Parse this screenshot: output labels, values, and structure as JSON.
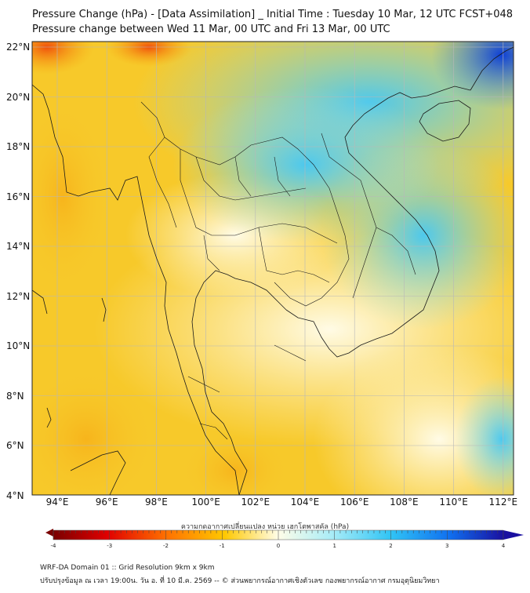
{
  "header": {
    "title_line1": "Pressure Change (hPa) - [Data Assimilation] _ Initial Time : Tuesday 10 Mar, 12 UTC FCST+048",
    "title_line2": "Pressure change between Wed 11 Mar, 00 UTC and Fri 13 Mar, 00 UTC"
  },
  "map": {
    "lat_labels": [
      "22°N",
      "20°N",
      "18°N",
      "16°N",
      "14°N",
      "12°N",
      "10°N",
      "8°N",
      "6°N",
      "4°N"
    ],
    "lon_labels": [
      "94°E",
      "96°E",
      "98°E",
      "100°E",
      "102°E",
      "104°E",
      "106°E",
      "108°E",
      "110°E",
      "112°E"
    ],
    "colors": {
      "land_outline": "#1a1a1a",
      "grid": "#b8b8b8",
      "warm": "#f7c92a",
      "light": "#fff6cc",
      "cool": "#8fe0f4",
      "deep": "#1060e0"
    }
  },
  "colorbar": {
    "title": "ความกดอากาศเปลี่ยนแปลง หน่วย เฮกโตพาสคัล (hPa)",
    "ticks": [
      "-4",
      "-3",
      "-2",
      "-1",
      "0",
      "1",
      "2",
      "3",
      "4"
    ],
    "unit": "hPa"
  },
  "footer": {
    "line1": "WRF-DA Domain 01 :: Grid Resolution 9km x 9km",
    "line2": "ปรับปรุงข้อมูล ณ เวลา 19:00น. วัน อ. ที่ 10 มี.ค. 2569 -- © ส่วนพยากรณ์อากาศเชิงตัวเลข กองพยากรณ์อากาศ กรมอุตุนิยมวิทยา"
  }
}
